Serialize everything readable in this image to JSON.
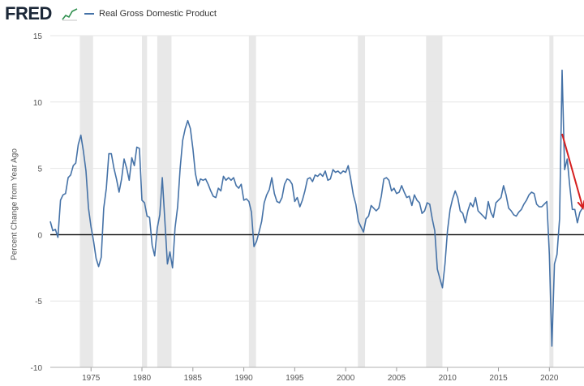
{
  "header": {
    "logo_text": "FRED",
    "logo_mark_icon": "line-graph-icon",
    "legend_label": "Real Gross Domestic Product"
  },
  "colors": {
    "series": "#4572a7",
    "recession": "#e8e8e8",
    "zero_line": "#000000",
    "annotation_arrow": "#d62020",
    "logo": "#1c2838"
  },
  "chart_data": {
    "type": "line",
    "title": "",
    "xlabel": "",
    "ylabel": "Percent Change from Year Ago",
    "xlim": [
      1971.0,
      2023.4
    ],
    "ylim": [
      -10,
      15
    ],
    "y_ticks": [
      -10,
      -5,
      0,
      5,
      10,
      15
    ],
    "x_ticks": [
      1975,
      1980,
      1985,
      1990,
      1995,
      2000,
      2005,
      2010,
      2015,
      2020
    ],
    "recessions": [
      [
        1973.9,
        1975.2
      ],
      [
        1980.0,
        1980.5
      ],
      [
        1981.5,
        1982.9
      ],
      [
        1990.5,
        1991.2
      ],
      [
        2001.2,
        2001.9
      ],
      [
        2007.9,
        2009.5
      ],
      [
        2020.0,
        2020.4
      ]
    ],
    "annotation": {
      "type": "arrow",
      "from": [
        2021.25,
        7.6
      ],
      "to": [
        2023.3,
        2.0
      ],
      "description": "red arrow pointing down"
    },
    "series": [
      {
        "name": "Real Gross Domestic Product",
        "x": [
          1971.0,
          1971.25,
          1971.5,
          1971.75,
          1972.0,
          1972.25,
          1972.5,
          1972.75,
          1973.0,
          1973.25,
          1973.5,
          1973.75,
          1974.0,
          1974.25,
          1974.5,
          1974.75,
          1975.0,
          1975.25,
          1975.5,
          1975.75,
          1976.0,
          1976.25,
          1976.5,
          1976.75,
          1977.0,
          1977.25,
          1977.5,
          1977.75,
          1978.0,
          1978.25,
          1978.5,
          1978.75,
          1979.0,
          1979.25,
          1979.5,
          1979.75,
          1980.0,
          1980.25,
          1980.5,
          1980.75,
          1981.0,
          1981.25,
          1981.5,
          1981.75,
          1982.0,
          1982.25,
          1982.5,
          1982.75,
          1983.0,
          1983.25,
          1983.5,
          1983.75,
          1984.0,
          1984.25,
          1984.5,
          1984.75,
          1985.0,
          1985.25,
          1985.5,
          1985.75,
          1986.0,
          1986.25,
          1986.5,
          1986.75,
          1987.0,
          1987.25,
          1987.5,
          1987.75,
          1988.0,
          1988.25,
          1988.5,
          1988.75,
          1989.0,
          1989.25,
          1989.5,
          1989.75,
          1990.0,
          1990.25,
          1990.5,
          1990.75,
          1991.0,
          1991.25,
          1991.5,
          1991.75,
          1992.0,
          1992.25,
          1992.5,
          1992.75,
          1993.0,
          1993.25,
          1993.5,
          1993.75,
          1994.0,
          1994.25,
          1994.5,
          1994.75,
          1995.0,
          1995.25,
          1995.5,
          1995.75,
          1996.0,
          1996.25,
          1996.5,
          1996.75,
          1997.0,
          1997.25,
          1997.5,
          1997.75,
          1998.0,
          1998.25,
          1998.5,
          1998.75,
          1999.0,
          1999.25,
          1999.5,
          1999.75,
          2000.0,
          2000.25,
          2000.5,
          2000.75,
          2001.0,
          2001.25,
          2001.5,
          2001.75,
          2002.0,
          2002.25,
          2002.5,
          2002.75,
          2003.0,
          2003.25,
          2003.5,
          2003.75,
          2004.0,
          2004.25,
          2004.5,
          2004.75,
          2005.0,
          2005.25,
          2005.5,
          2005.75,
          2006.0,
          2006.25,
          2006.5,
          2006.75,
          2007.0,
          2007.25,
          2007.5,
          2007.75,
          2008.0,
          2008.25,
          2008.5,
          2008.75,
          2009.0,
          2009.25,
          2009.5,
          2009.75,
          2010.0,
          2010.25,
          2010.5,
          2010.75,
          2011.0,
          2011.25,
          2011.5,
          2011.75,
          2012.0,
          2012.25,
          2012.5,
          2012.75,
          2013.0,
          2013.25,
          2013.5,
          2013.75,
          2014.0,
          2014.25,
          2014.5,
          2014.75,
          2015.0,
          2015.25,
          2015.5,
          2015.75,
          2016.0,
          2016.25,
          2016.5,
          2016.75,
          2017.0,
          2017.25,
          2017.5,
          2017.75,
          2018.0,
          2018.25,
          2018.5,
          2018.75,
          2019.0,
          2019.25,
          2019.5,
          2019.75,
          2020.0,
          2020.25,
          2020.5,
          2020.75,
          2021.0,
          2021.25,
          2021.5,
          2021.75,
          2022.0,
          2022.25,
          2022.5,
          2022.75,
          2023.0,
          2023.25
        ],
        "values": [
          1.0,
          0.3,
          0.4,
          -0.2,
          2.6,
          3.0,
          3.1,
          4.3,
          4.5,
          5.2,
          5.4,
          6.8,
          7.5,
          6.3,
          4.8,
          2.0,
          0.6,
          -0.5,
          -1.8,
          -2.4,
          -1.7,
          2.0,
          3.5,
          6.1,
          6.1,
          5.0,
          4.2,
          3.2,
          4.2,
          5.7,
          5.0,
          4.1,
          5.8,
          5.2,
          6.6,
          6.5,
          2.6,
          2.4,
          1.4,
          1.3,
          -0.8,
          -1.6,
          0.5,
          1.5,
          4.3,
          1.0,
          -2.2,
          -1.3,
          -2.5,
          0.5,
          2.1,
          5.0,
          7.1,
          8.0,
          8.6,
          8.0,
          6.5,
          4.6,
          3.7,
          4.2,
          4.1,
          4.2,
          3.8,
          3.3,
          2.9,
          2.8,
          3.5,
          3.3,
          4.4,
          4.1,
          4.3,
          4.1,
          4.3,
          3.7,
          3.5,
          3.8,
          2.6,
          2.7,
          2.5,
          1.7,
          -0.9,
          -0.5,
          0.2,
          1.0,
          2.4,
          3.0,
          3.4,
          4.3,
          3.1,
          2.5,
          2.4,
          2.8,
          3.8,
          4.2,
          4.1,
          3.8,
          2.5,
          2.8,
          2.1,
          2.6,
          3.3,
          4.2,
          4.3,
          4.0,
          4.5,
          4.4,
          4.6,
          4.4,
          4.8,
          4.1,
          4.2,
          4.9,
          4.7,
          4.8,
          4.6,
          4.8,
          4.7,
          5.2,
          4.2,
          3.0,
          2.3,
          1.0,
          0.6,
          0.2,
          1.2,
          1.4,
          2.2,
          2.0,
          1.8,
          2.0,
          2.9,
          4.2,
          4.3,
          4.1,
          3.3,
          3.5,
          3.1,
          3.2,
          3.7,
          3.2,
          2.8,
          2.9,
          2.2,
          3.0,
          2.6,
          2.4,
          1.6,
          1.8,
          2.4,
          2.3,
          1.2,
          0.3,
          -2.6,
          -3.3,
          -4.0,
          -2.2,
          0.3,
          1.9,
          2.7,
          3.3,
          2.8,
          1.8,
          1.6,
          0.9,
          1.8,
          2.4,
          2.1,
          2.8,
          1.8,
          1.6,
          1.4,
          1.2,
          2.5,
          1.7,
          1.3,
          2.4,
          2.6,
          2.8,
          3.7,
          3.0,
          2.0,
          1.8,
          1.5,
          1.4,
          1.7,
          1.9,
          2.3,
          2.6,
          3.0,
          3.2,
          3.1,
          2.3,
          2.1,
          2.1,
          2.3,
          2.5,
          -1.5,
          -8.4,
          -2.2,
          -1.5,
          1.2,
          12.4,
          4.9,
          5.7,
          3.7,
          1.9,
          1.9,
          0.9,
          1.7,
          2.0
        ]
      }
    ]
  }
}
